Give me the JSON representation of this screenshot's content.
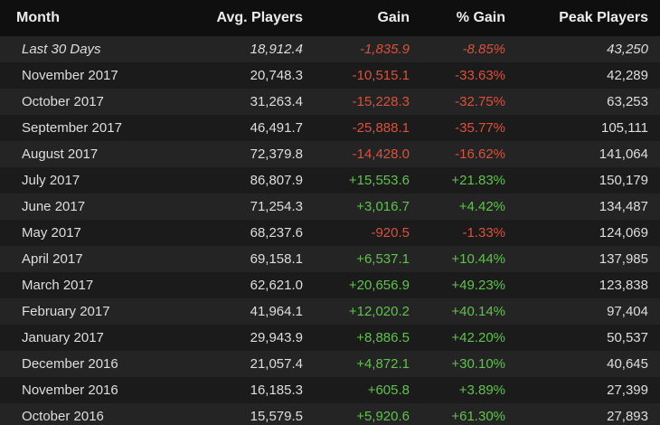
{
  "colors": {
    "negative": "#d9513b",
    "positive": "#5fc24a",
    "header_bg": "#0f0f0f",
    "row_odd": "#242424",
    "row_even": "#1b1b1b"
  },
  "table": {
    "headers": {
      "month": "Month",
      "avg_players": "Avg. Players",
      "gain": "Gain",
      "pct_gain": "% Gain",
      "peak_players": "Peak Players"
    },
    "rows": [
      {
        "month": "Last 30 Days",
        "avg": "18,912.4",
        "gain": "-1,835.9",
        "pct": "-8.85%",
        "peak": "43,250"
      },
      {
        "month": "November 2017",
        "avg": "20,748.3",
        "gain": "-10,515.1",
        "pct": "-33.63%",
        "peak": "42,289"
      },
      {
        "month": "October 2017",
        "avg": "31,263.4",
        "gain": "-15,228.3",
        "pct": "-32.75%",
        "peak": "63,253"
      },
      {
        "month": "September 2017",
        "avg": "46,491.7",
        "gain": "-25,888.1",
        "pct": "-35.77%",
        "peak": "105,111"
      },
      {
        "month": "August 2017",
        "avg": "72,379.8",
        "gain": "-14,428.0",
        "pct": "-16.62%",
        "peak": "141,064"
      },
      {
        "month": "July 2017",
        "avg": "86,807.9",
        "gain": "+15,553.6",
        "pct": "+21.83%",
        "peak": "150,179"
      },
      {
        "month": "June 2017",
        "avg": "71,254.3",
        "gain": "+3,016.7",
        "pct": "+4.42%",
        "peak": "134,487"
      },
      {
        "month": "May 2017",
        "avg": "68,237.6",
        "gain": "-920.5",
        "pct": "-1.33%",
        "peak": "124,069"
      },
      {
        "month": "April 2017",
        "avg": "69,158.1",
        "gain": "+6,537.1",
        "pct": "+10.44%",
        "peak": "137,985"
      },
      {
        "month": "March 2017",
        "avg": "62,621.0",
        "gain": "+20,656.9",
        "pct": "+49.23%",
        "peak": "123,838"
      },
      {
        "month": "February 2017",
        "avg": "41,964.1",
        "gain": "+12,020.2",
        "pct": "+40.14%",
        "peak": "97,404"
      },
      {
        "month": "January 2017",
        "avg": "29,943.9",
        "gain": "+8,886.5",
        "pct": "+42.20%",
        "peak": "50,537"
      },
      {
        "month": "December 2016",
        "avg": "21,057.4",
        "gain": "+4,872.1",
        "pct": "+30.10%",
        "peak": "40,645"
      },
      {
        "month": "November 2016",
        "avg": "16,185.3",
        "gain": "+605.8",
        "pct": "+3.89%",
        "peak": "27,399"
      },
      {
        "month": "October 2016",
        "avg": "15,579.5",
        "gain": "+5,920.6",
        "pct": "+61.30%",
        "peak": "27,893"
      }
    ]
  }
}
